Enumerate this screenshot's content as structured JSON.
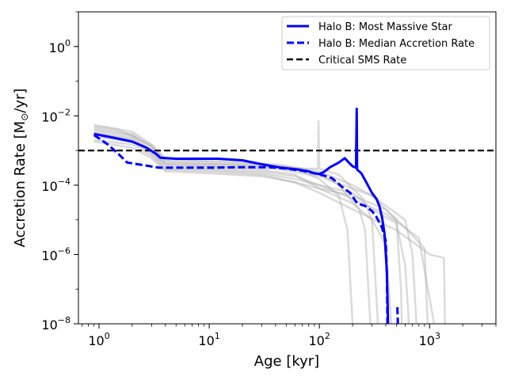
{
  "chart_data": {
    "type": "line",
    "title": "",
    "xlabel": "Age [kyr]",
    "ylabel_main": "Accretion Rate [M",
    "ylabel_sub": "⊙",
    "ylabel_end": "/yr]",
    "x_scale": "log",
    "y_scale": "log",
    "xlim": [
      0.65,
      4000
    ],
    "ylim": [
      1e-08,
      10
    ],
    "x_ticks": [
      {
        "value": 1,
        "base": "10",
        "exp": "0"
      },
      {
        "value": 10,
        "base": "10",
        "exp": "1"
      },
      {
        "value": 100,
        "base": "10",
        "exp": "2"
      },
      {
        "value": 1000,
        "base": "10",
        "exp": "3"
      }
    ],
    "y_ticks": [
      {
        "value": 1e-08,
        "base": "10",
        "exp": "−8"
      },
      {
        "value": 1e-06,
        "base": "10",
        "exp": "−6"
      },
      {
        "value": 0.0001,
        "base": "10",
        "exp": "−4"
      },
      {
        "value": 0.01,
        "base": "10",
        "exp": "−2"
      },
      {
        "value": 1,
        "base": "10",
        "exp": "0"
      }
    ],
    "grid": false,
    "legend_position": "top-right",
    "legend": [
      {
        "label": "Halo B: Most Massive Star",
        "color": "#0000ff",
        "style": "solid"
      },
      {
        "label": "Halo B: Median Accretion Rate",
        "color": "#0000ff",
        "style": "dashed"
      },
      {
        "label": "Critical SMS Rate",
        "color": "#000000",
        "style": "dashed"
      }
    ],
    "series": [
      {
        "name": "Halo B: Most Massive Star",
        "color": "#0000ff",
        "style": "solid",
        "points": [
          [
            0.9,
            0.003
          ],
          [
            1.3,
            0.0024
          ],
          [
            2.0,
            0.0018
          ],
          [
            2.7,
            0.0012
          ],
          [
            3.3,
            0.0008
          ],
          [
            3.6,
            0.00062
          ],
          [
            5,
            0.00058
          ],
          [
            8,
            0.00058
          ],
          [
            12,
            0.00058
          ],
          [
            20,
            0.00052
          ],
          [
            30,
            0.0004
          ],
          [
            45,
            0.00032
          ],
          [
            65,
            0.00028
          ],
          [
            80,
            0.00025
          ],
          [
            90,
            0.00022
          ],
          [
            100,
            0.00021
          ],
          [
            110,
            0.00024
          ],
          [
            125,
            0.00033
          ],
          [
            150,
            0.00045
          ],
          [
            170,
            0.0006
          ],
          [
            185,
            0.00045
          ],
          [
            200,
            0.00035
          ],
          [
            215,
            0.00032
          ],
          [
            218,
            0.016
          ],
          [
            220,
            0.00028
          ],
          [
            240,
            0.00022
          ],
          [
            260,
            0.00014
          ],
          [
            280,
            9e-05
          ],
          [
            300,
            6e-05
          ],
          [
            330,
            4e-05
          ],
          [
            350,
            2.5e-05
          ],
          [
            370,
            1.2e-05
          ],
          [
            390,
            4e-06
          ],
          [
            410,
            3e-07
          ],
          [
            420,
            1e-08
          ]
        ]
      },
      {
        "name": "Halo B: Median Accretion Rate",
        "color": "#0000ff",
        "style": "dashed",
        "points": [
          [
            0.9,
            0.0028
          ],
          [
            1.2,
            0.0015
          ],
          [
            1.5,
            0.0008
          ],
          [
            1.8,
            0.00045
          ],
          [
            2.5,
            0.00038
          ],
          [
            3.5,
            0.00032
          ],
          [
            6,
            0.00032
          ],
          [
            10,
            0.00032
          ],
          [
            20,
            0.00033
          ],
          [
            35,
            0.00033
          ],
          [
            50,
            0.0003
          ],
          [
            70,
            0.00026
          ],
          [
            90,
            0.00022
          ],
          [
            110,
            0.00019
          ],
          [
            130,
            0.00016
          ],
          [
            160,
            9e-05
          ],
          [
            190,
            6e-05
          ],
          [
            220,
            3e-05
          ],
          [
            260,
            2.5e-05
          ],
          [
            300,
            1.8e-05
          ],
          [
            330,
            1.2e-05
          ],
          [
            370,
            6e-06
          ],
          [
            400,
            2.5e-06
          ],
          [
            410,
            2.5e-07
          ],
          [
            415,
            1e-08
          ]
        ],
        "extra_segment": [
          [
            510,
            3e-08
          ],
          [
            515,
            1e-08
          ]
        ]
      },
      {
        "name": "Critical SMS Rate",
        "color": "#000000",
        "style": "dashed",
        "points": [
          [
            0.65,
            0.001
          ],
          [
            4000,
            0.001
          ]
        ]
      }
    ],
    "background_series": [
      {
        "color": "#b0b0b0",
        "points": [
          [
            0.9,
            0.0055
          ],
          [
            2,
            0.0035
          ],
          [
            3,
            0.0015
          ],
          [
            4,
            0.0006
          ],
          [
            10,
            0.00045
          ],
          [
            30,
            0.0004
          ],
          [
            60,
            0.0003
          ],
          [
            100,
            0.00015
          ],
          [
            150,
            5e-05
          ],
          [
            180,
            5e-06
          ],
          [
            200,
            1e-08
          ]
        ]
      },
      {
        "color": "#b0b0b0",
        "points": [
          [
            0.9,
            0.004
          ],
          [
            2,
            0.0028
          ],
          [
            3,
            0.0012
          ],
          [
            4,
            0.0005
          ],
          [
            10,
            0.0004
          ],
          [
            30,
            0.00035
          ],
          [
            70,
            0.0003
          ],
          [
            97,
            0.0003
          ],
          [
            98,
            0.007
          ],
          [
            100,
            0.0003
          ],
          [
            150,
            0.0002
          ],
          [
            250,
            4e-05
          ],
          [
            300,
            1e-05
          ],
          [
            340,
            1e-08
          ]
        ]
      },
      {
        "color": "#b0b0b0",
        "points": [
          [
            0.9,
            0.0035
          ],
          [
            2,
            0.0025
          ],
          [
            3,
            0.001
          ],
          [
            4,
            0.0004
          ],
          [
            10,
            0.00035
          ],
          [
            30,
            0.00028
          ],
          [
            60,
            0.0002
          ],
          [
            100,
            8e-05
          ],
          [
            200,
            3e-05
          ],
          [
            300,
            1e-05
          ],
          [
            400,
            2e-06
          ],
          [
            450,
            1e-08
          ]
        ]
      },
      {
        "color": "#b0b0b0",
        "points": [
          [
            0.9,
            0.003
          ],
          [
            2,
            0.0022
          ],
          [
            3,
            0.0009
          ],
          [
            4,
            0.00035
          ],
          [
            10,
            0.0003
          ],
          [
            30,
            0.00025
          ],
          [
            60,
            0.00018
          ],
          [
            100,
            0.0001
          ],
          [
            200,
            6e-05
          ],
          [
            300,
            2e-05
          ],
          [
            500,
            8e-06
          ],
          [
            600,
            5e-07
          ],
          [
            650,
            1e-08
          ]
        ]
      },
      {
        "color": "#b0b0b0",
        "points": [
          [
            0.9,
            0.0025
          ],
          [
            2,
            0.0018
          ],
          [
            3,
            0.0008
          ],
          [
            4,
            0.0003
          ],
          [
            10,
            0.00028
          ],
          [
            30,
            0.00022
          ],
          [
            60,
            0.00015
          ],
          [
            100,
            0.0001
          ],
          [
            200,
            4e-05
          ],
          [
            400,
            1.5e-05
          ],
          [
            800,
            3e-06
          ],
          [
            1100,
            1e-08
          ]
        ]
      },
      {
        "color": "#b0b0b0",
        "points": [
          [
            0.9,
            0.002
          ],
          [
            2,
            0.0015
          ],
          [
            3,
            0.0007
          ],
          [
            4,
            0.00028
          ],
          [
            10,
            0.00025
          ],
          [
            30,
            0.0002
          ],
          [
            60,
            0.00012
          ],
          [
            100,
            6e-05
          ],
          [
            200,
            2e-05
          ],
          [
            500,
            5e-06
          ],
          [
            1000,
            1e-06
          ],
          [
            1350,
            8e-07
          ],
          [
            1380,
            1e-08
          ]
        ]
      },
      {
        "color": "#b0b0b0",
        "points": [
          [
            0.9,
            0.0018
          ],
          [
            2,
            0.0012
          ],
          [
            3,
            0.0006
          ],
          [
            4,
            0.00025
          ],
          [
            10,
            0.00022
          ],
          [
            30,
            0.00018
          ],
          [
            60,
            0.00012
          ],
          [
            100,
            8e-05
          ],
          [
            200,
            5e-05
          ],
          [
            400,
            2e-05
          ],
          [
            600,
            6e-06
          ],
          [
            900,
            1.5e-06
          ],
          [
            960,
            1e-08
          ]
        ]
      },
      {
        "color": "#b0b0b0",
        "points": [
          [
            0.9,
            0.0045
          ],
          [
            2,
            0.003
          ],
          [
            3,
            0.0013
          ],
          [
            4,
            0.00055
          ],
          [
            10,
            0.0005
          ],
          [
            20,
            0.00045
          ],
          [
            40,
            0.0004
          ],
          [
            100,
            0.00025
          ],
          [
            200,
            0.0001
          ],
          [
            300,
            5e-05
          ],
          [
            500,
            1e-05
          ],
          [
            550,
            1e-07
          ],
          [
            560,
            1e-08
          ]
        ]
      },
      {
        "color": "#b0b0b0",
        "points": [
          [
            0.9,
            0.005
          ],
          [
            1.5,
            0.004
          ],
          [
            3,
            0.0014
          ],
          [
            4,
            0.00045
          ],
          [
            10,
            0.0004
          ],
          [
            50,
            0.00035
          ],
          [
            100,
            0.00022
          ],
          [
            150,
            0.0001
          ],
          [
            230,
            2e-05
          ],
          [
            260,
            5e-06
          ],
          [
            290,
            1e-08
          ]
        ]
      },
      {
        "color": "#b0b0b0",
        "points": [
          [
            0.9,
            0.0032
          ],
          [
            2,
            0.002
          ],
          [
            3,
            0.0009
          ],
          [
            4,
            0.0004
          ],
          [
            10,
            0.00035
          ],
          [
            40,
            0.0003
          ],
          [
            100,
            0.00018
          ],
          [
            300,
            5e-05
          ],
          [
            600,
            1e-05
          ],
          [
            700,
            1e-06
          ],
          [
            760,
            1e-08
          ]
        ]
      }
    ]
  }
}
